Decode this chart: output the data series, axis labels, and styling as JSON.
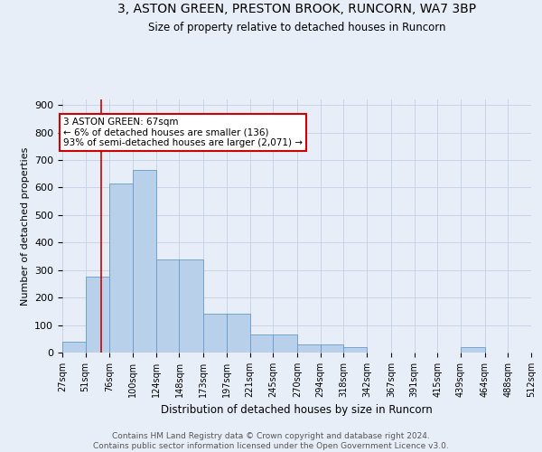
{
  "title_line1": "3, ASTON GREEN, PRESTON BROOK, RUNCORN, WA7 3BP",
  "title_line2": "Size of property relative to detached houses in Runcorn",
  "xlabel": "Distribution of detached houses by size in Runcorn",
  "ylabel": "Number of detached properties",
  "bin_edges": [
    27,
    51,
    76,
    100,
    124,
    148,
    173,
    197,
    221,
    245,
    270,
    294,
    318,
    342,
    367,
    391,
    415,
    439,
    464,
    488,
    512
  ],
  "bar_heights": [
    40,
    275,
    615,
    665,
    340,
    340,
    140,
    140,
    65,
    65,
    30,
    30,
    20,
    0,
    0,
    0,
    0,
    20,
    0,
    0
  ],
  "bar_color": "#b8d0ea",
  "bar_edgecolor": "#6699cc",
  "grid_color": "#c8d4e8",
  "vline_x": 67,
  "vline_color": "#cc0000",
  "annotation_line1": "3 ASTON GREEN: 67sqm",
  "annotation_line2": "← 6% of detached houses are smaller (136)",
  "annotation_line3": "93% of semi-detached houses are larger (2,071) →",
  "annotation_box_facecolor": "#ffffff",
  "annotation_box_edgecolor": "#cc0000",
  "ylim": [
    0,
    920
  ],
  "yticks": [
    0,
    100,
    200,
    300,
    400,
    500,
    600,
    700,
    800,
    900
  ],
  "background_color": "#e8eef8",
  "footer_line1": "Contains HM Land Registry data © Crown copyright and database right 2024.",
  "footer_line2": "Contains public sector information licensed under the Open Government Licence v3.0."
}
